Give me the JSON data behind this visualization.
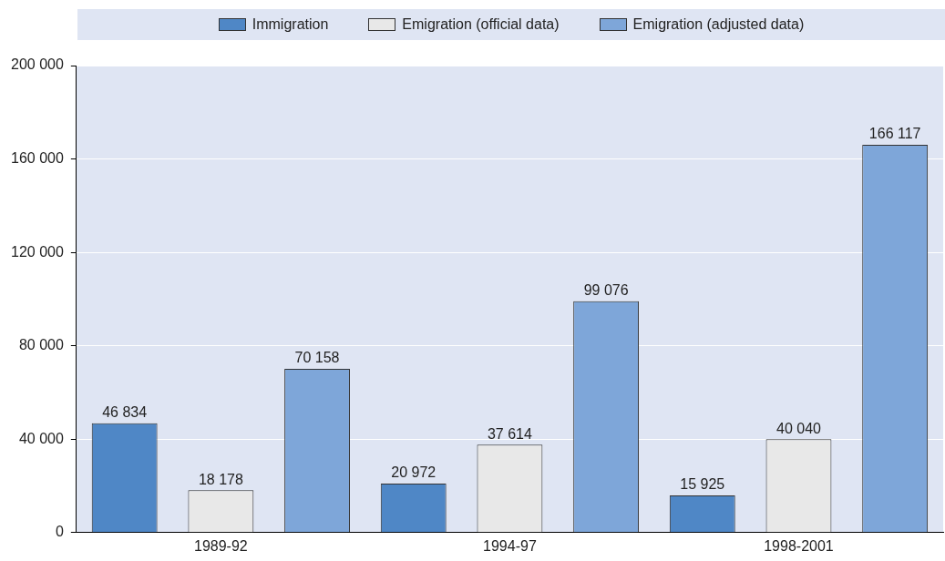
{
  "chart_data": {
    "type": "bar",
    "categories": [
      "1989-92",
      "1994-97",
      "1998-2001"
    ],
    "series": [
      {
        "name": "Immigration",
        "color": "#4f87c6",
        "values": [
          46834,
          20972,
          15925
        ],
        "value_labels": [
          "46 834",
          "20 972",
          "15 925"
        ]
      },
      {
        "name": "Emigration (official data)",
        "color": "#e8e8e8",
        "values": [
          18178,
          37614,
          40040
        ],
        "value_labels": [
          "18 178",
          "37 614",
          "40 040"
        ]
      },
      {
        "name": "Emigration (adjusted data)",
        "color": "#7ea6d9",
        "values": [
          70158,
          99076,
          166117
        ],
        "value_labels": [
          "70 158",
          "99 076",
          "166 117"
        ]
      }
    ],
    "ylim": [
      0,
      200000
    ],
    "yticks": [
      {
        "value": 0,
        "label": "0"
      },
      {
        "value": 40000,
        "label": "40 000"
      },
      {
        "value": 80000,
        "label": "80 000"
      },
      {
        "value": 120000,
        "label": "120 000"
      },
      {
        "value": 160000,
        "label": "160 000"
      },
      {
        "value": 200000,
        "label": "200 000"
      }
    ],
    "grid": "y",
    "legend": "top"
  }
}
